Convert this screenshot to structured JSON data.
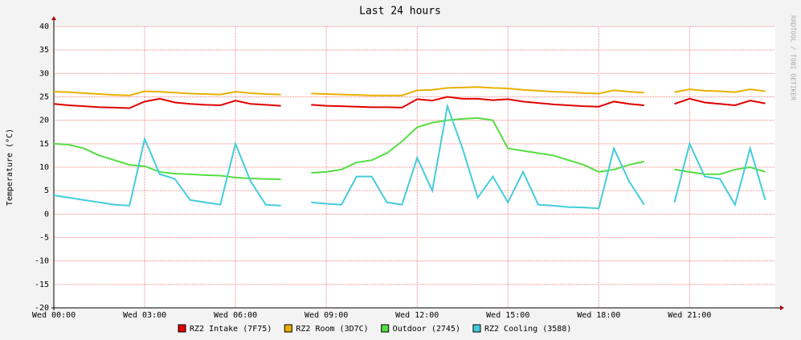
{
  "chart_data": {
    "type": "line",
    "title": "Last 24 hours",
    "y_label": "Temperature (°C)",
    "watermark": "RRDTOOL / TOBI OETIKER",
    "x": [
      0,
      0.5,
      1,
      1.5,
      2,
      2.5,
      3,
      3.5,
      4,
      4.5,
      5,
      5.5,
      6,
      6.5,
      7,
      7.5,
      8,
      8.5,
      9,
      9.5,
      10,
      10.5,
      11,
      11.5,
      12,
      12.5,
      13,
      13.5,
      14,
      14.5,
      15,
      15.5,
      16,
      16.5,
      17,
      17.5,
      18,
      18.5,
      19,
      19.5,
      20,
      20.5,
      21,
      21.5,
      22,
      22.5,
      23,
      23.5
    ],
    "xlim": [
      0,
      23.83
    ],
    "xticks": [
      {
        "value": 0,
        "label": "Wed 00:00"
      },
      {
        "value": 3,
        "label": "Wed 03:00"
      },
      {
        "value": 6,
        "label": "Wed 06:00"
      },
      {
        "value": 9,
        "label": "Wed 09:00"
      },
      {
        "value": 12,
        "label": "Wed 12:00"
      },
      {
        "value": 15,
        "label": "Wed 15:00"
      },
      {
        "value": 18,
        "label": "Wed 18:00"
      },
      {
        "value": 21,
        "label": "Wed 21:00"
      }
    ],
    "ylim": [
      -20,
      40
    ],
    "yticks": [
      -20,
      -15,
      -10,
      -5,
      0,
      5,
      10,
      15,
      20,
      25,
      30,
      35,
      40
    ],
    "grid": true,
    "series": [
      {
        "name": "RZ2 Intake (7F75)",
        "color": "#e00000",
        "values": [
          23.5,
          23.2,
          23.0,
          22.8,
          22.7,
          22.6,
          24.0,
          24.6,
          23.8,
          23.5,
          23.3,
          23.2,
          24.2,
          23.5,
          23.3,
          23.1,
          null,
          23.3,
          23.1,
          23.0,
          22.9,
          22.8,
          22.8,
          22.7,
          24.5,
          24.2,
          25.0,
          24.6,
          24.6,
          24.3,
          24.5,
          24.0,
          23.7,
          23.4,
          23.2,
          23.0,
          22.9,
          24.0,
          23.5,
          23.2,
          null,
          23.5,
          24.6,
          23.8,
          23.5,
          23.2,
          24.2,
          23.6
        ]
      },
      {
        "name": "RZ2 Room (3D7C)",
        "color": "#e8b000",
        "values": [
          26.1,
          26.0,
          25.8,
          25.6,
          25.4,
          25.3,
          26.2,
          26.1,
          25.9,
          25.7,
          25.6,
          25.5,
          26.1,
          25.8,
          25.6,
          25.5,
          null,
          25.7,
          25.6,
          25.5,
          25.4,
          25.3,
          25.3,
          25.3,
          26.4,
          26.5,
          26.9,
          27.0,
          27.1,
          26.9,
          26.8,
          26.5,
          26.3,
          26.1,
          26.0,
          25.8,
          25.7,
          26.4,
          26.1,
          25.9,
          null,
          26.0,
          26.6,
          26.3,
          26.2,
          26.0,
          26.6,
          26.2
        ]
      },
      {
        "name": "Outdoor (2745)",
        "color": "#55dd44",
        "values": [
          15.0,
          14.8,
          14.0,
          12.5,
          11.5,
          10.5,
          10.2,
          9.0,
          8.6,
          8.5,
          8.3,
          8.2,
          7.8,
          7.6,
          7.5,
          7.4,
          null,
          8.8,
          9.0,
          9.5,
          11.0,
          11.5,
          13.0,
          15.5,
          18.5,
          19.5,
          20.0,
          20.3,
          20.5,
          20.0,
          14.0,
          13.5,
          13.0,
          12.5,
          11.5,
          10.5,
          9.0,
          9.5,
          10.5,
          11.2,
          null,
          9.5,
          9.0,
          8.5,
          8.5,
          9.5,
          10.0,
          9.0
        ]
      },
      {
        "name": "RZ2 Cooling (3588)",
        "color": "#44ccdd",
        "values": [
          4.0,
          3.5,
          3.0,
          2.5,
          2.0,
          1.8,
          16.0,
          8.5,
          7.5,
          3.0,
          2.5,
          2.0,
          15.0,
          7.0,
          2.0,
          1.8,
          null,
          2.5,
          2.2,
          2.0,
          8.0,
          8.0,
          2.5,
          2.0,
          12.0,
          5.0,
          23.0,
          14.0,
          3.5,
          8.0,
          2.5,
          9.0,
          2.0,
          1.8,
          1.5,
          1.4,
          1.2,
          14.0,
          7.0,
          2.0,
          null,
          2.5,
          15.0,
          8.0,
          7.5,
          2.0,
          14.0,
          3.0
        ]
      }
    ]
  }
}
